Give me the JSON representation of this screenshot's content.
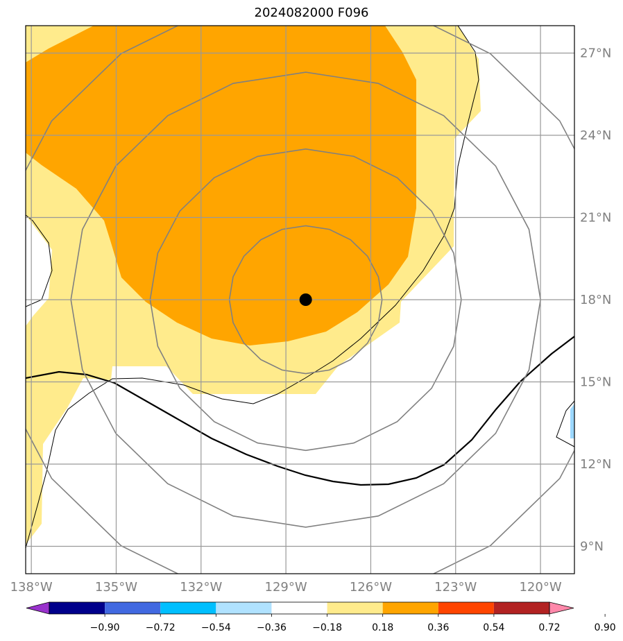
{
  "title": "2024082000 F096",
  "map": {
    "lon_range": [
      -138.2,
      -118.8
    ],
    "lat_range": [
      8.0,
      28.0
    ],
    "lon_ticks": [
      {
        "value": -138,
        "label": "138°W"
      },
      {
        "value": -135,
        "label": "135°W"
      },
      {
        "value": -132,
        "label": "132°W"
      },
      {
        "value": -129,
        "label": "129°W"
      },
      {
        "value": -126,
        "label": "126°W"
      },
      {
        "value": -123,
        "label": "123°W"
      },
      {
        "value": -120,
        "label": "120°W"
      }
    ],
    "lat_ticks": [
      {
        "value": 9,
        "label": "9°N"
      },
      {
        "value": 12,
        "label": "12°N"
      },
      {
        "value": 15,
        "label": "15°N"
      },
      {
        "value": 18,
        "label": "18°N"
      },
      {
        "value": 21,
        "label": "21°N"
      },
      {
        "value": 24,
        "label": "24°N"
      },
      {
        "value": 27,
        "label": "27°N"
      }
    ],
    "storm_center": {
      "lon": -128.3,
      "lat": 18.0
    },
    "range_rings_deg": [
      2.7,
      5.5,
      8.3,
      11.1
    ],
    "grid": true
  },
  "colorbar": {
    "labels": [
      "−0.90",
      "−0.72",
      "−0.54",
      "−0.36",
      "−0.18",
      "0.18",
      "0.36",
      "0.54",
      "0.72",
      "0.90"
    ],
    "colors": [
      "#9932cc",
      "#00008b",
      "#4169e1",
      "#00bfff",
      "#b0e2ff",
      "#ffffff",
      "#ffeb8c",
      "#ffa500",
      "#ff4500",
      "#b22222",
      "#ff88aa"
    ]
  }
}
